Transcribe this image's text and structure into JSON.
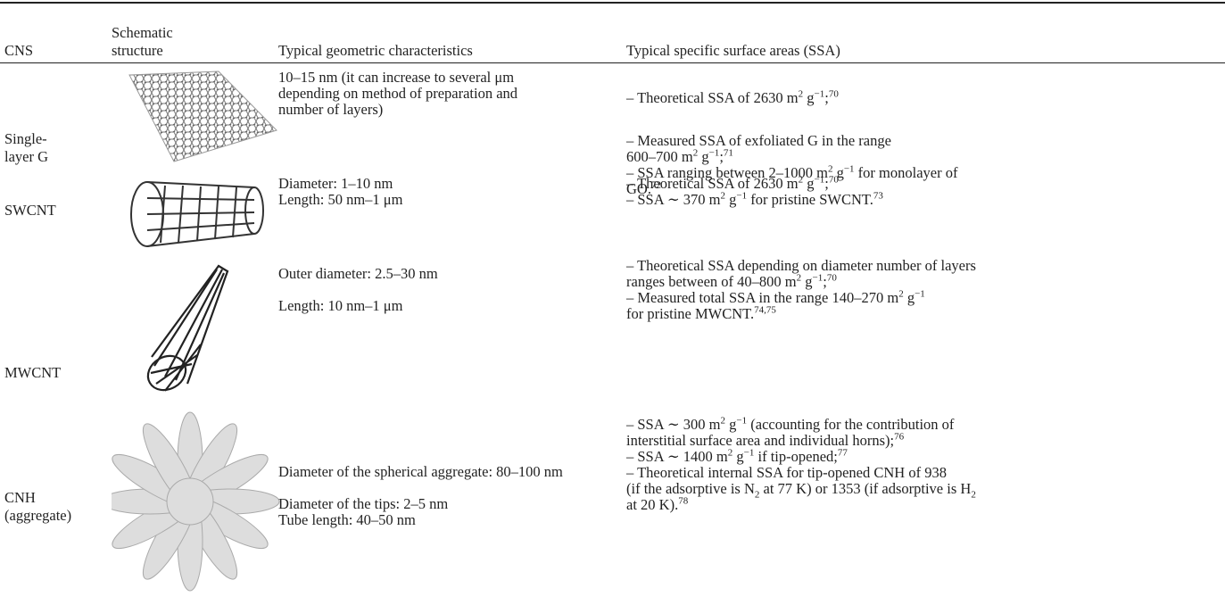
{
  "table": {
    "header": [
      "CNS",
      "Schematic structure",
      "Typical geometric characteristics",
      "Typical specific surface areas (SSA)"
    ],
    "rows": [
      {
        "cns": "Single-layer G",
        "geometry": [
          [
            [
              "10–15 nm (it can increase to several μm"
            ],
            [
              "depending on method of preparation and"
            ],
            [
              "number of layers)"
            ]
          ]
        ],
        "ssa": [
          [
            [
              "– Theoretical SSA of 2630 m",
              {
                "sup": "2"
              },
              " g",
              {
                "sup": "−1"
              },
              ";",
              {
                "sup": "70"
              }
            ]
          ],
          [
            [
              "– Measured SSA of exfoliated G in the range"
            ],
            [
              "600–700 m",
              {
                "sup": "2"
              },
              " g",
              {
                "sup": "−1"
              },
              ";",
              {
                "sup": "71"
              }
            ],
            [
              "– SSA ranging between 2–1000 m",
              {
                "sup": "2"
              },
              " g",
              {
                "sup": "−1"
              },
              " for monolayer of"
            ],
            [
              "GO.",
              {
                "sup": "72"
              }
            ]
          ]
        ]
      },
      {
        "cns": "SWCNT",
        "geometry": [
          [
            [
              "Diameter: 1–10 nm"
            ],
            [
              "Length: 50 nm–1 μm"
            ]
          ]
        ],
        "ssa": [
          [
            [
              "– Theoretical SSA of 2630 m",
              {
                "sup": "2"
              },
              " g",
              {
                "sup": "−1"
              },
              ";",
              {
                "sup": "70"
              }
            ],
            [
              "– SSA ∼ 370 m",
              {
                "sup": "2"
              },
              " g",
              {
                "sup": "−1"
              },
              " for pristine SWCNT.",
              {
                "sup": "73"
              }
            ]
          ]
        ]
      },
      {
        "cns": "MWCNT",
        "geometry": [
          [
            [
              "Outer diameter: 2.5–30 nm"
            ]
          ],
          [
            [
              "Length: 10 nm–1 μm"
            ]
          ]
        ],
        "ssa": [
          [
            [
              "– Theoretical SSA depending on diameter number of layers"
            ],
            [
              "ranges between of 40–800 m",
              {
                "sup": "2"
              },
              " g",
              {
                "sup": "−1"
              },
              ";",
              {
                "sup": "70"
              }
            ],
            [
              "– Measured total SSA in the range 140–270 m",
              {
                "sup": "2"
              },
              " g",
              {
                "sup": "−1"
              }
            ],
            [
              "for pristine MWCNT.",
              {
                "sup": "74,75"
              }
            ]
          ]
        ]
      },
      {
        "cns": "CNH (aggregate)",
        "geometry": [
          [
            [
              "Diameter of the spherical aggregate: 80–100 nm"
            ]
          ],
          [
            [
              "Diameter of the tips: 2–5 nm"
            ],
            [
              "Tube length: 40–50 nm"
            ]
          ]
        ],
        "ssa": [
          [
            [
              "– SSA ∼ 300 m",
              {
                "sup": "2"
              },
              " g",
              {
                "sup": "−1"
              },
              " (accounting for the contribution of"
            ],
            [
              "interstitial surface area and individual horns);",
              {
                "sup": "76"
              }
            ],
            [
              "– SSA ∼ 1400 m",
              {
                "sup": "2"
              },
              " g",
              {
                "sup": "−1"
              },
              " if tip-opened;",
              {
                "sup": "77"
              }
            ],
            [
              "– Theoretical internal SSA for tip-opened CNH of 938"
            ],
            [
              "(if the adsorptive is N",
              {
                "sub": "2"
              },
              " at 77 K) or 1353 (if adsorptive is H",
              {
                "sub": "2"
              }
            ],
            [
              "at 20 K).",
              {
                "sup": "78"
              }
            ]
          ]
        ]
      }
    ]
  }
}
